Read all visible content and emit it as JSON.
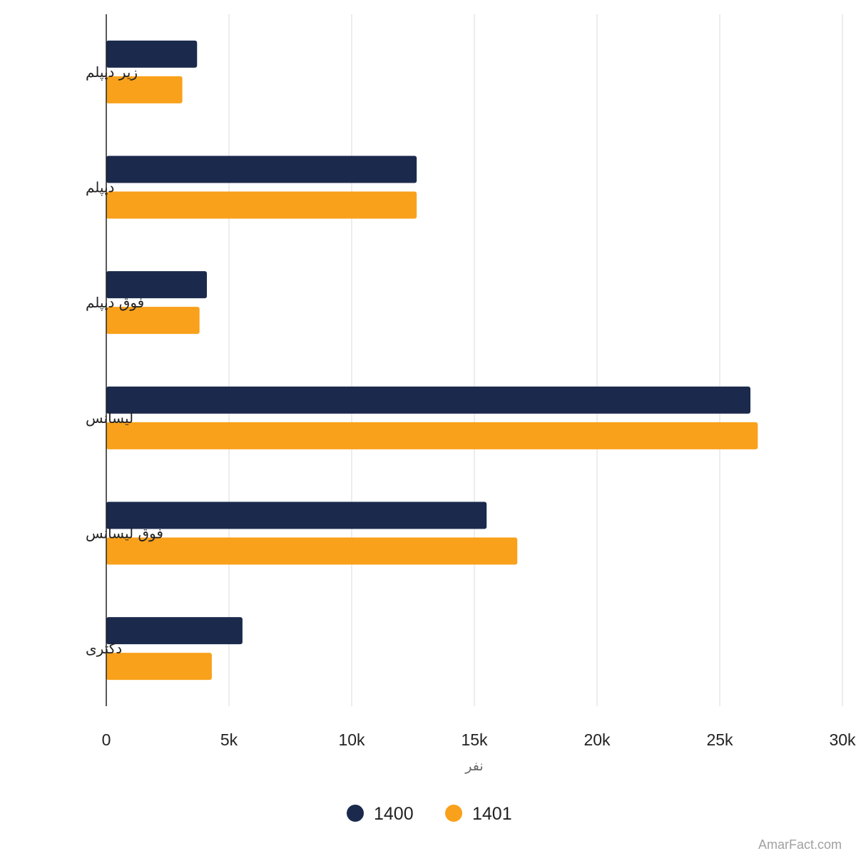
{
  "chart_data": {
    "type": "bar",
    "orientation": "horizontal",
    "categories": [
      "زیر دیپلم",
      "دیپلم",
      "فوق دیپلم",
      "لیسانس",
      "فوق لیسانس",
      "دکتری"
    ],
    "series": [
      {
        "name": "1400",
        "color": "#1b2a4c",
        "values": [
          3700,
          12650,
          4100,
          26250,
          15500,
          5550
        ]
      },
      {
        "name": "1401",
        "color": "#f9a11b",
        "values": [
          3100,
          12650,
          3800,
          26550,
          16750,
          4300
        ]
      }
    ],
    "xlabel": "نفر",
    "xlim": [
      0,
      30000
    ],
    "xticks": [
      "0",
      "5k",
      "10k",
      "15k",
      "20k",
      "25k",
      "30k"
    ],
    "xtick_values": [
      0,
      5000,
      10000,
      15000,
      20000,
      25000,
      30000
    ],
    "grid": "vertical",
    "legend_position": "bottom-center"
  },
  "watermark": "AmarFact.com"
}
